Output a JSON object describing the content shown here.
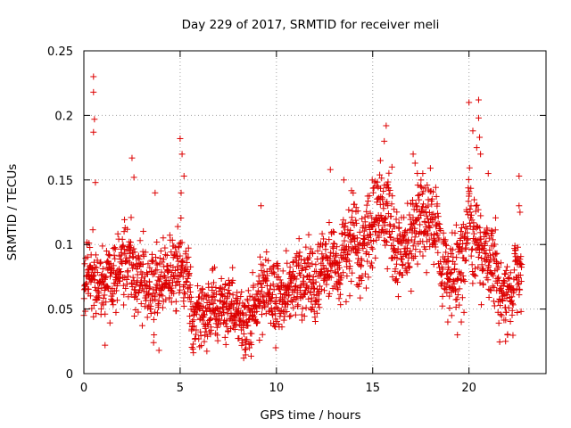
{
  "chart_data": {
    "type": "scatter",
    "title": "Day 229 of 2017, SRMTID for receiver meli",
    "xlabel": "GPS time / hours",
    "ylabel": "SRMTID / TECUs",
    "xlim": [
      0,
      24
    ],
    "ylim": [
      0,
      0.25
    ],
    "xticks": [
      0,
      5,
      10,
      15,
      20
    ],
    "yticks": [
      0,
      0.05,
      0.1,
      0.15,
      0.2,
      0.25
    ],
    "xtick_labels": [
      "0",
      "5",
      "10",
      "15",
      "20"
    ],
    "ytick_labels": [
      "0",
      "0.05",
      "0.1",
      "0.15",
      "0.2",
      "0.25"
    ],
    "grid": true,
    "marker": "+",
    "marker_color": "#dd0000",
    "points_per_hour": 90,
    "x_end": 22.75,
    "envelope": [
      [
        0.0,
        0.072
      ],
      [
        0.5,
        0.075
      ],
      [
        1.0,
        0.07
      ],
      [
        1.5,
        0.075
      ],
      [
        2.0,
        0.08
      ],
      [
        2.5,
        0.085
      ],
      [
        3.0,
        0.075
      ],
      [
        3.5,
        0.07
      ],
      [
        4.0,
        0.068
      ],
      [
        4.5,
        0.072
      ],
      [
        5.0,
        0.09
      ],
      [
        5.5,
        0.06
      ],
      [
        6.0,
        0.05
      ],
      [
        6.5,
        0.048
      ],
      [
        7.0,
        0.05
      ],
      [
        7.5,
        0.055
      ],
      [
        8.0,
        0.05
      ],
      [
        8.5,
        0.052
      ],
      [
        9.0,
        0.065
      ],
      [
        9.5,
        0.068
      ],
      [
        10.0,
        0.06
      ],
      [
        10.5,
        0.062
      ],
      [
        11.0,
        0.065
      ],
      [
        11.5,
        0.07
      ],
      [
        12.0,
        0.072
      ],
      [
        12.5,
        0.078
      ],
      [
        13.0,
        0.085
      ],
      [
        13.5,
        0.09
      ],
      [
        14.0,
        0.095
      ],
      [
        14.5,
        0.1
      ],
      [
        15.0,
        0.115
      ],
      [
        15.5,
        0.125
      ],
      [
        16.0,
        0.11
      ],
      [
        16.5,
        0.09
      ],
      [
        17.0,
        0.11
      ],
      [
        17.5,
        0.125
      ],
      [
        18.0,
        0.12
      ],
      [
        18.5,
        0.09
      ],
      [
        19.0,
        0.075
      ],
      [
        19.5,
        0.085
      ],
      [
        20.0,
        0.115
      ],
      [
        20.5,
        0.1
      ],
      [
        21.0,
        0.09
      ],
      [
        21.5,
        0.08
      ],
      [
        22.0,
        0.06
      ],
      [
        22.5,
        0.075
      ],
      [
        22.75,
        0.08
      ]
    ],
    "spread": 0.018,
    "spikes": [
      [
        0.5,
        0.23
      ],
      [
        0.5,
        0.218
      ],
      [
        0.55,
        0.197
      ],
      [
        0.5,
        0.187
      ],
      [
        0.6,
        0.148
      ],
      [
        0.25,
        0.075
      ],
      [
        2.5,
        0.167
      ],
      [
        2.6,
        0.152
      ],
      [
        3.7,
        0.14
      ],
      [
        5.0,
        0.182
      ],
      [
        5.1,
        0.17
      ],
      [
        5.2,
        0.153
      ],
      [
        5.05,
        0.14
      ],
      [
        9.2,
        0.13
      ],
      [
        8.4,
        0.025
      ],
      [
        8.6,
        0.02
      ],
      [
        8.3,
        0.012
      ],
      [
        12.8,
        0.158
      ],
      [
        13.5,
        0.15
      ],
      [
        15.4,
        0.165
      ],
      [
        15.6,
        0.18
      ],
      [
        15.7,
        0.192
      ],
      [
        16.0,
        0.16
      ],
      [
        17.1,
        0.17
      ],
      [
        17.2,
        0.163
      ],
      [
        17.6,
        0.155
      ],
      [
        18.9,
        0.04
      ],
      [
        19.1,
        0.045
      ],
      [
        19.4,
        0.03
      ],
      [
        19.6,
        0.04
      ],
      [
        20.0,
        0.21
      ],
      [
        20.2,
        0.188
      ],
      [
        20.5,
        0.212
      ],
      [
        20.5,
        0.198
      ],
      [
        20.55,
        0.183
      ],
      [
        20.6,
        0.17
      ],
      [
        20.4,
        0.175
      ],
      [
        21.0,
        0.155
      ],
      [
        21.9,
        0.025
      ],
      [
        22.0,
        0.03
      ],
      [
        22.6,
        0.153
      ],
      [
        22.6,
        0.13
      ],
      [
        22.65,
        0.125
      ],
      [
        3.9,
        0.018
      ],
      [
        1.1,
        0.022
      ]
    ]
  }
}
